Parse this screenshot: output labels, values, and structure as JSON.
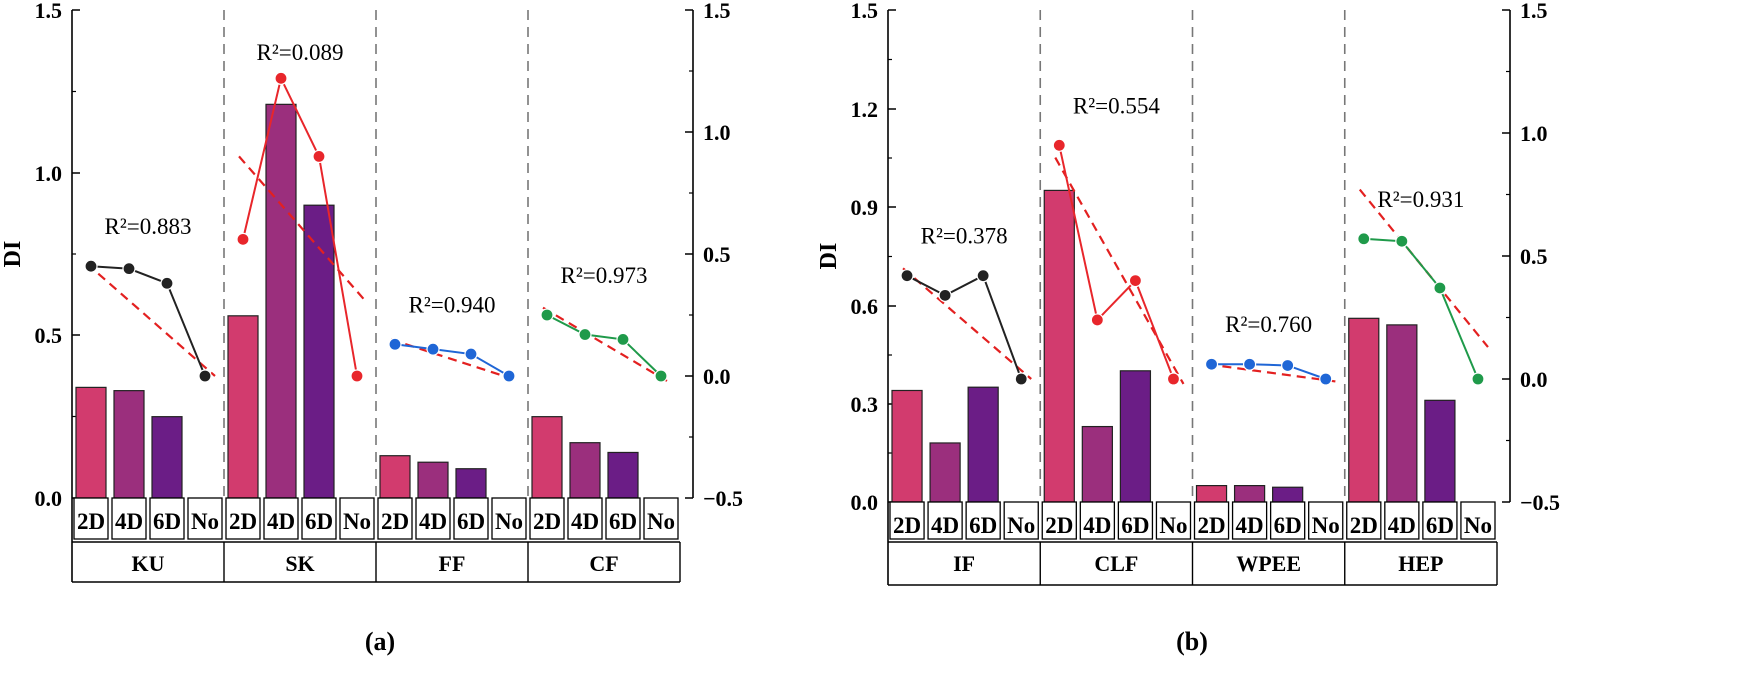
{
  "chart_data": [
    {
      "type": "bar",
      "panel_label": "(a)",
      "ylabel": "DI",
      "ylim": [
        0,
        1.5
      ],
      "yticks": [
        "0.0",
        "0.5",
        "1.0",
        "1.5"
      ],
      "right_ylim": [
        -0.5,
        1.5
      ],
      "right_yticks": [
        "−0.5",
        "0.0",
        "0.5",
        "1.0",
        "1.5"
      ],
      "categories": [
        "2D",
        "4D",
        "6D",
        "No"
      ],
      "groups": [
        {
          "name": "KU",
          "bars": [
            0.34,
            0.33,
            0.25
          ],
          "line": [
            0.45,
            0.44,
            0.38,
            0.0
          ],
          "trend": [
            0.46,
            0.0
          ],
          "r2": "R²=0.883",
          "color": "#222222"
        },
        {
          "name": "SK",
          "bars": [
            0.56,
            1.21,
            0.9
          ],
          "line": [
            0.56,
            1.22,
            0.9,
            0.0
          ],
          "trend": [
            0.9,
            0.3
          ],
          "r2": "R²=0.089",
          "color": "#e8262b"
        },
        {
          "name": "FF",
          "bars": [
            0.13,
            0.11,
            0.09
          ],
          "line": [
            0.13,
            0.11,
            0.09,
            0.0
          ],
          "trend": [
            0.15,
            -0.02
          ],
          "r2": "R²=0.940",
          "color": "#1f66d6"
        },
        {
          "name": "CF",
          "bars": [
            0.25,
            0.17,
            0.14
          ],
          "line": [
            0.25,
            0.17,
            0.15,
            0.0
          ],
          "trend": [
            0.28,
            -0.03
          ],
          "r2": "R²=0.973",
          "color": "#1f9a4a"
        }
      ]
    },
    {
      "type": "bar",
      "panel_label": "(b)",
      "ylabel": "DI",
      "ylim": [
        0,
        1.5
      ],
      "yticks": [
        "0.0",
        "0.3",
        "0.6",
        "0.9",
        "1.2",
        "1.5"
      ],
      "right_ylim": [
        -0.5,
        1.5
      ],
      "right_yticks": [
        "−0.5",
        "0.0",
        "0.5",
        "1.0",
        "1.5"
      ],
      "categories": [
        "2D",
        "4D",
        "6D",
        "No"
      ],
      "groups": [
        {
          "name": "IF",
          "bars": [
            0.34,
            0.18,
            0.35
          ],
          "line": [
            0.42,
            0.34,
            0.42,
            0.0
          ],
          "trend": [
            0.45,
            0.0
          ],
          "r2": "R²=0.378",
          "color": "#222222"
        },
        {
          "name": "CLF",
          "bars": [
            0.95,
            0.23,
            0.4
          ],
          "line": [
            0.95,
            0.24,
            0.4,
            0.0
          ],
          "trend": [
            0.9,
            -0.02
          ],
          "r2": "R²=0.554",
          "color": "#e8262b"
        },
        {
          "name": "WPEE",
          "bars": [
            0.05,
            0.05,
            0.045
          ],
          "line": [
            0.06,
            0.06,
            0.055,
            0.0
          ],
          "trend": [
            0.06,
            -0.01
          ],
          "r2": "R²=0.760",
          "color": "#1f66d6"
        },
        {
          "name": "HEP",
          "bars": [
            0.56,
            0.54,
            0.31
          ],
          "line": [
            0.57,
            0.56,
            0.37,
            0.0
          ],
          "trend": [
            0.77,
            0.13
          ],
          "r2": "R²=0.931",
          "color": "#1f9a4a"
        }
      ]
    }
  ],
  "bar_colors": [
    "#d23b6e",
    "#9b2f7d",
    "#6b1d86"
  ],
  "trend_color": "#e32020"
}
